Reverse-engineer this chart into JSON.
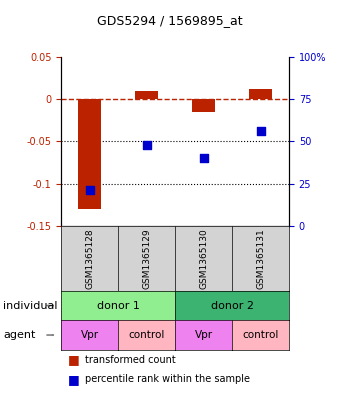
{
  "title": "GDS5294 / 1569895_at",
  "samples": [
    "GSM1365128",
    "GSM1365129",
    "GSM1365130",
    "GSM1365131"
  ],
  "bar_values": [
    -0.13,
    0.01,
    -0.015,
    0.012
  ],
  "dot_values": [
    0.21,
    0.48,
    0.4,
    0.56
  ],
  "bar_color": "#BB2200",
  "dot_color": "#0000CC",
  "ylim_left": [
    -0.15,
    0.05
  ],
  "ylim_right": [
    0,
    100
  ],
  "yticks_left": [
    0.05,
    0,
    -0.05,
    -0.1,
    -0.15
  ],
  "yticks_right": [
    100,
    75,
    50,
    25,
    0
  ],
  "dotted_lines": [
    -0.05,
    -0.1
  ],
  "donor1_color": "#90EE90",
  "donor2_color": "#3CB371",
  "vpr_color": "#EE82EE",
  "control_color": "#FFB6C1",
  "sample_box_color": "#D3D3D3",
  "agent_row": [
    "Vpr",
    "control",
    "Vpr",
    "control"
  ],
  "legend_bar_label": "transformed count",
  "legend_dot_label": "percentile rank within the sample",
  "bar_width": 0.4
}
